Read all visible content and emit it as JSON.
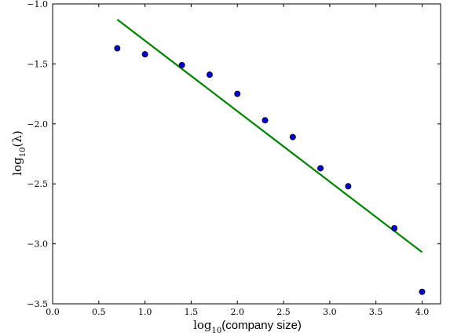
{
  "chart_data": {
    "type": "scatter",
    "title": "",
    "xlabel": {
      "prefix": "log",
      "subscript": "10",
      "suffix": "(company size)"
    },
    "ylabel": {
      "prefix": "log",
      "subscript": "10",
      "suffix": "(λ)"
    },
    "xlim": [
      0.0,
      4.2
    ],
    "ylim": [
      -3.5,
      -1.0
    ],
    "xticks": [
      0.0,
      0.5,
      1.0,
      1.5,
      2.0,
      2.5,
      3.0,
      3.5,
      4.0
    ],
    "xtick_labels": [
      "0.0",
      "0.5",
      "1.0",
      "1.5",
      "2.0",
      "2.5",
      "3.0",
      "3.5",
      "4.0"
    ],
    "yticks": [
      -1.0,
      -1.5,
      -2.0,
      -2.5,
      -3.0,
      -3.5
    ],
    "ytick_labels": [
      "−1.0",
      "−1.5",
      "−2.0",
      "−2.5",
      "−3.0",
      "−3.5"
    ],
    "grid": false,
    "series": [
      {
        "kind": "points",
        "color": "#0000cc",
        "x": [
          0.7,
          1.0,
          1.4,
          1.7,
          2.0,
          2.3,
          2.6,
          2.9,
          3.2,
          3.7,
          4.0
        ],
        "y": [
          -1.37,
          -1.42,
          -1.51,
          -1.59,
          -1.75,
          -1.97,
          -2.11,
          -2.37,
          -2.52,
          -2.87,
          -3.4
        ]
      },
      {
        "kind": "fit-line",
        "color": "#008000",
        "x": [
          0.7,
          4.0
        ],
        "y": [
          -1.13,
          -3.07
        ]
      }
    ]
  }
}
